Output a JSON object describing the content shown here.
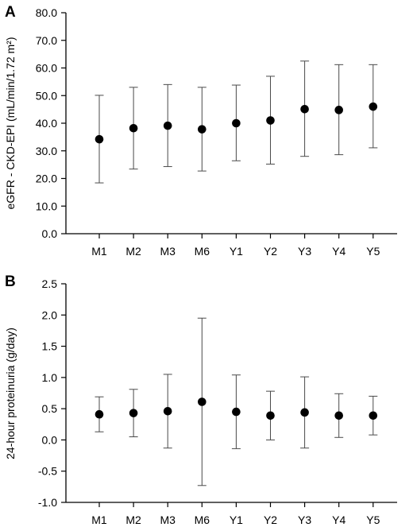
{
  "chart_data": [
    {
      "panel": "A",
      "type": "scatter",
      "categories": [
        "M1",
        "M2",
        "M3",
        "M6",
        "Y1",
        "Y2",
        "Y3",
        "Y4",
        "Y5"
      ],
      "ylabel": "eGFR - CKD-EPI (mL/min/1.72 m²)",
      "ylim": [
        0,
        80
      ],
      "yticks": [
        "0.0",
        "10.0",
        "20.0",
        "30.0",
        "40.0",
        "50.0",
        "60.0",
        "70.0",
        "80.0"
      ],
      "grid": false,
      "series": [
        {
          "values": [
            34.2,
            38.2,
            39.1,
            37.8,
            40.0,
            41.0,
            45.1,
            44.8,
            46.0
          ],
          "err_low": [
            18.4,
            23.4,
            24.3,
            22.7,
            26.4,
            25.2,
            28.0,
            28.6,
            31.1
          ],
          "err_high": [
            50.1,
            53.0,
            54.0,
            53.0,
            53.8,
            57.0,
            62.5,
            61.2,
            61.2
          ]
        }
      ]
    },
    {
      "panel": "B",
      "type": "scatter",
      "categories": [
        "M1",
        "M2",
        "M3",
        "M6",
        "Y1",
        "Y2",
        "Y3",
        "Y4",
        "Y5"
      ],
      "ylabel": "24-hour proteinuria (g/day)",
      "ylim": [
        -1.0,
        2.5
      ],
      "yticks": [
        "-1.0",
        "-0.5",
        "0.0",
        "0.5",
        "1.0",
        "1.5",
        "2.0",
        "2.5"
      ],
      "grid": false,
      "series": [
        {
          "values": [
            0.41,
            0.43,
            0.46,
            0.61,
            0.45,
            0.39,
            0.44,
            0.39,
            0.39
          ],
          "err_low": [
            0.13,
            0.05,
            -0.13,
            -0.73,
            -0.14,
            0.0,
            -0.13,
            0.04,
            0.08
          ],
          "err_high": [
            0.69,
            0.81,
            1.05,
            1.95,
            1.04,
            0.78,
            1.01,
            0.74,
            0.7
          ]
        }
      ]
    }
  ]
}
